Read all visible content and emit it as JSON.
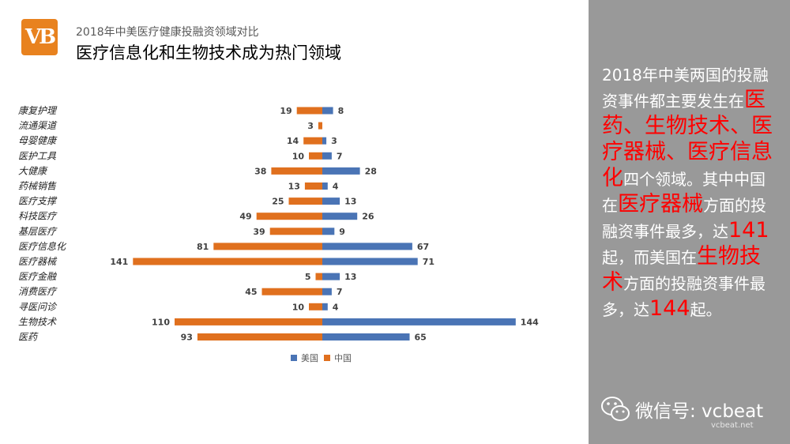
{
  "logo": {
    "text": "VB",
    "color": "#e8821f"
  },
  "header": {
    "subtitle": "2018年中美医疗健康投融资领域对比",
    "title": "医疗信息化和生物技术成为热门领域"
  },
  "chart_data": {
    "type": "bar",
    "orientation": "horizontal-diverging",
    "categories": [
      "康复护理",
      "流通渠道",
      "母婴健康",
      "医护工具",
      "大健康",
      "药械销售",
      "医疗支撑",
      "科技医疗",
      "基层医疗",
      "医疗信息化",
      "医疗器械",
      "医疗金融",
      "消费医疗",
      "寻医问诊",
      "生物技术",
      "医药"
    ],
    "series": [
      {
        "name": "美国",
        "color": "#4a74b5",
        "values": [
          8,
          0,
          3,
          7,
          28,
          4,
          13,
          26,
          9,
          67,
          71,
          13,
          7,
          4,
          144,
          65
        ]
      },
      {
        "name": "中国",
        "color": "#e0701e",
        "values": [
          19,
          3,
          14,
          10,
          38,
          13,
          25,
          49,
          39,
          81,
          141,
          5,
          45,
          10,
          110,
          93
        ]
      }
    ],
    "legend_position": "bottom",
    "grid": false
  },
  "sidebar": {
    "background": "#999999",
    "highlight_color": "#ff0000",
    "segments": [
      {
        "text": "2018年中美两国的投融资事件都主要发生在",
        "hl": false
      },
      {
        "text": "医药、生物技术、医疗器械、医疗信息化",
        "hl": true
      },
      {
        "text": "四个领域。其中中国在",
        "hl": false
      },
      {
        "text": "医疗器械",
        "hl": true
      },
      {
        "text": "方面的投融资事件最多，达",
        "hl": false
      },
      {
        "text": "141",
        "hl": true
      },
      {
        "text": "起，而美国在",
        "hl": false
      },
      {
        "text": "生物技术",
        "hl": true
      },
      {
        "text": "方面的投融资事件最多，达",
        "hl": false
      },
      {
        "text": "144",
        "hl": true
      },
      {
        "text": "起。",
        "hl": false
      }
    ]
  },
  "footer": {
    "wechat_label": "微信号: vcbeat",
    "watermark": "vcbeat.net"
  }
}
